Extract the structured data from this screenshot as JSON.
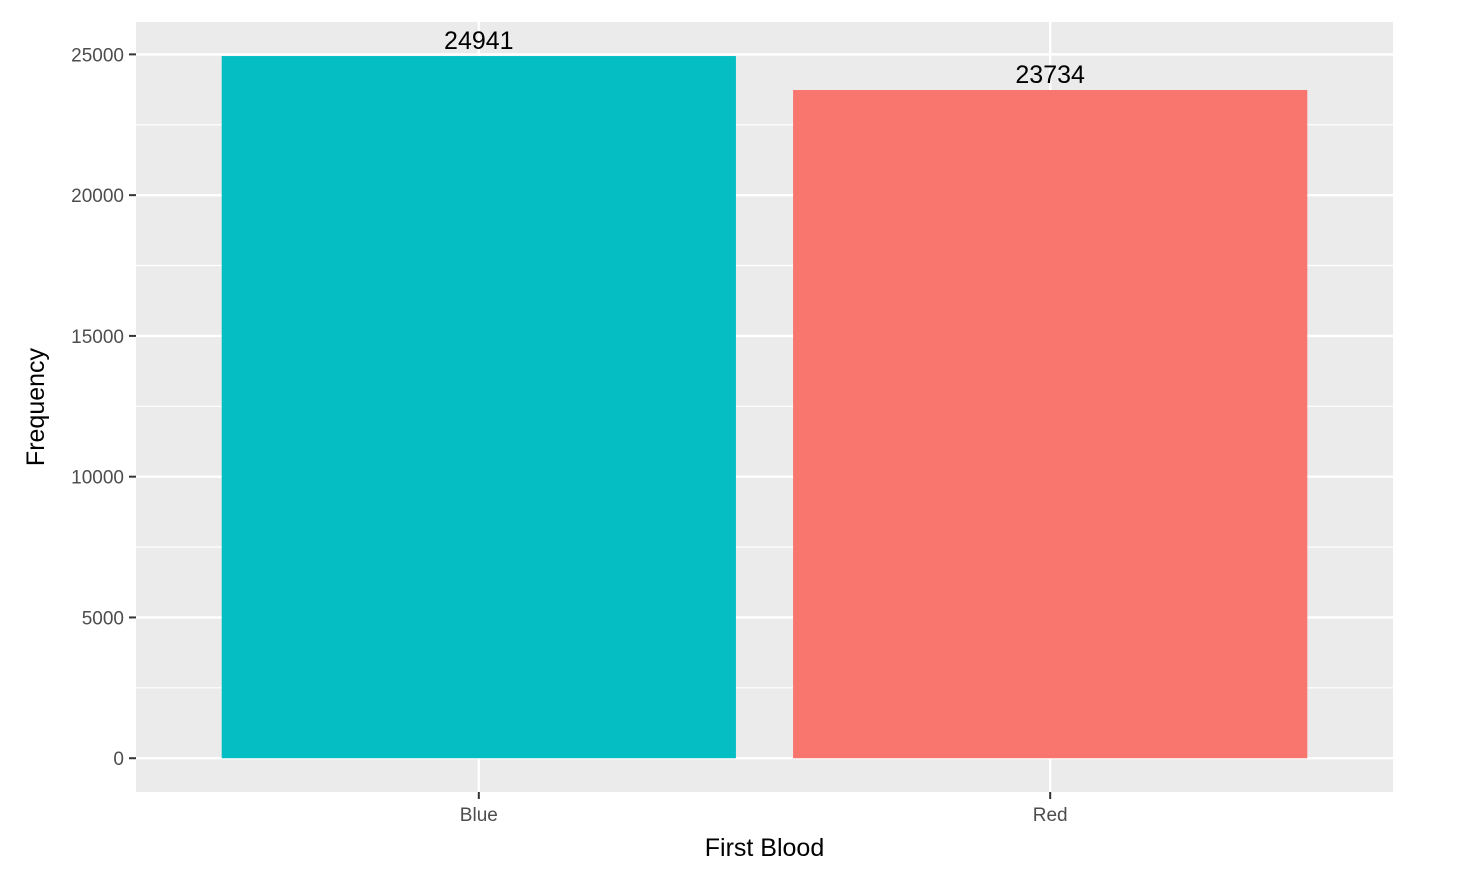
{
  "chart_data": {
    "type": "bar",
    "title": "",
    "xlabel": "First Blood",
    "ylabel": "Frequency",
    "categories": [
      "Blue",
      "Red"
    ],
    "values": [
      24941,
      23734
    ],
    "data_labels": [
      "24941",
      "23734"
    ],
    "bar_colors": [
      "#05BEC4",
      "#F8766D"
    ],
    "ylim": [
      -1200,
      26150
    ],
    "yticks": [
      0,
      5000,
      10000,
      15000,
      20000,
      25000
    ],
    "ytick_labels": [
      "0",
      "5000",
      "10000",
      "15000",
      "20000",
      "25000"
    ],
    "grid": true,
    "legend": "none",
    "panel_background": "#EBEBEB",
    "grid_color": "#FFFFFF",
    "tick_color": "#333333"
  }
}
